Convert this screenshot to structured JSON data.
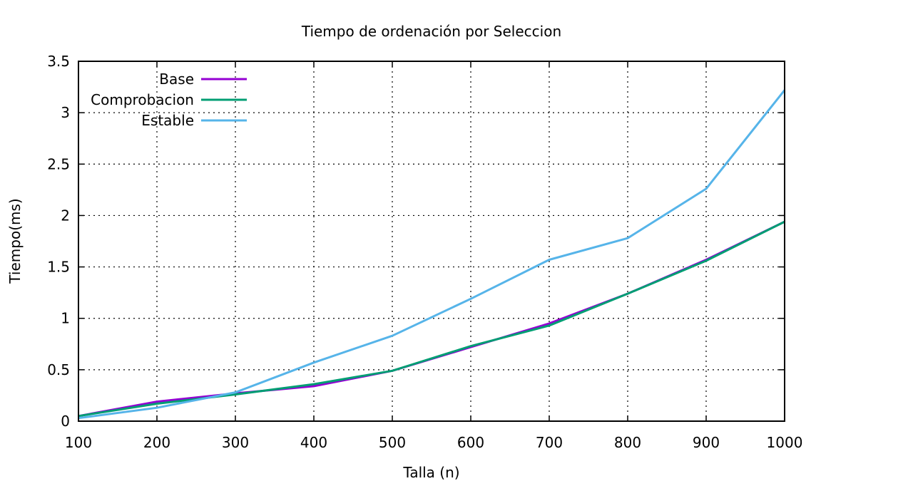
{
  "chart_data": {
    "type": "line",
    "title": "Tiempo de ordenación por Seleccion",
    "xlabel": "Talla (n)",
    "ylabel": "Tiempo(ms)",
    "xlim": [
      100,
      1000
    ],
    "ylim": [
      0,
      3.5
    ],
    "x_ticks": [
      "100",
      "200",
      "300",
      "400",
      "500",
      "600",
      "700",
      "800",
      "900",
      "1000"
    ],
    "y_ticks": [
      "0",
      "0.5",
      "1",
      "1.5",
      "2",
      "2.5",
      "3",
      "3.5"
    ],
    "grid": true,
    "legend_position": "top-left",
    "x": [
      100,
      200,
      300,
      400,
      500,
      600,
      700,
      800,
      900,
      1000
    ],
    "series": [
      {
        "name": "Base",
        "color": "#9400d3",
        "values": [
          0.05,
          0.19,
          0.27,
          0.34,
          0.49,
          0.72,
          0.95,
          1.24,
          1.57,
          1.94
        ]
      },
      {
        "name": "Comprobacion",
        "color": "#009e73",
        "values": [
          0.05,
          0.17,
          0.26,
          0.36,
          0.49,
          0.73,
          0.93,
          1.24,
          1.56,
          1.94
        ]
      },
      {
        "name": "Estable",
        "color": "#56b4e9",
        "values": [
          0.03,
          0.13,
          0.28,
          0.57,
          0.83,
          1.19,
          1.57,
          1.78,
          2.26,
          3.22
        ]
      }
    ]
  }
}
